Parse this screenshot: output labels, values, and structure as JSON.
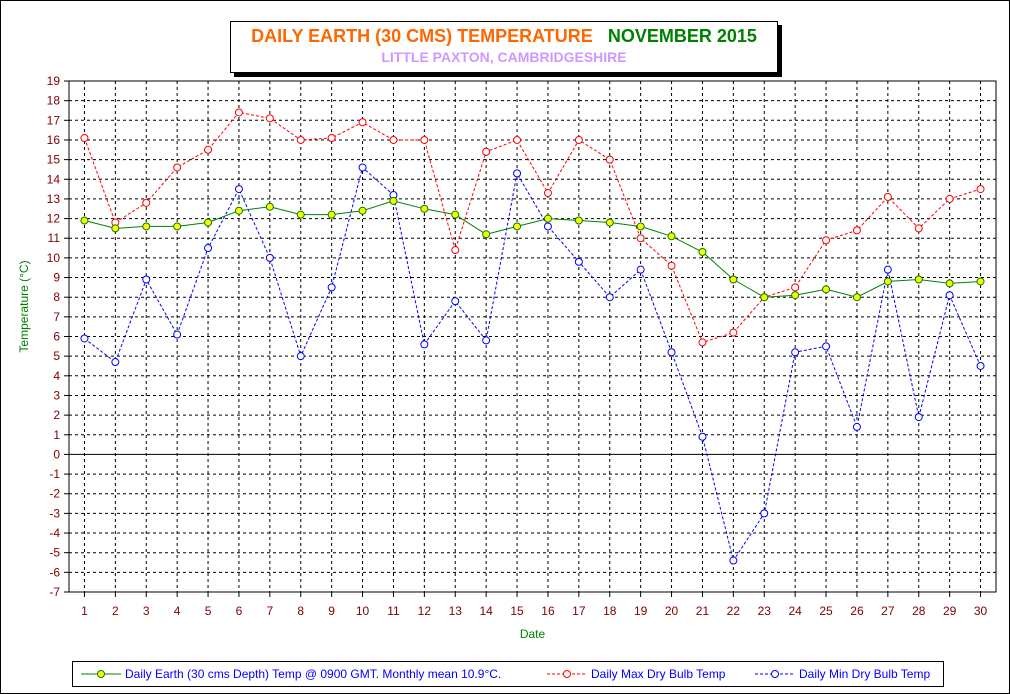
{
  "title": {
    "main": "DAILY EARTH (30 CMS) TEMPERATURE",
    "month": "NOVEMBER 2015",
    "subtitle": "LITTLE PAXTON, CAMBRIDGESHIRE"
  },
  "colors": {
    "title_main": "#ff6600",
    "title_month": "#008000",
    "subtitle": "#cc99ff",
    "axis_label": "#008000",
    "tick_label": "#800000",
    "legend_text": "#0000ff",
    "earth": "#008000",
    "earth_marker": "#ffff00",
    "max": "#ff0000",
    "min": "#0000ff",
    "grid": "#000000"
  },
  "chart_data": {
    "type": "line",
    "xlabel": "Date",
    "ylabel": "Temperature (°C)",
    "ylim": [
      -7,
      19
    ],
    "xlim": [
      1,
      30
    ],
    "grid": true,
    "legend_position": "bottom",
    "x": [
      1,
      2,
      3,
      4,
      5,
      6,
      7,
      8,
      9,
      10,
      11,
      12,
      13,
      14,
      15,
      16,
      17,
      18,
      19,
      20,
      21,
      22,
      23,
      24,
      25,
      26,
      27,
      28,
      29,
      30
    ],
    "series": [
      {
        "name": "Daily Earth (30 cms Depth) Temp @ 0900 GMT. Monthly mean 10.9°C.",
        "style": "solid",
        "color": "#008000",
        "values": [
          11.9,
          11.5,
          11.6,
          11.6,
          11.8,
          12.4,
          12.6,
          12.2,
          12.2,
          12.4,
          12.9,
          12.5,
          12.2,
          11.2,
          11.6,
          12.0,
          11.9,
          11.8,
          11.6,
          11.1,
          10.3,
          8.9,
          8.0,
          8.1,
          8.4,
          8.0,
          8.8,
          8.9,
          8.7,
          8.8
        ]
      },
      {
        "name": "Daily Max Dry Bulb Temp",
        "style": "dashed",
        "color": "#ff0000",
        "values": [
          16.1,
          11.8,
          12.8,
          14.6,
          15.5,
          17.4,
          17.1,
          16.0,
          16.1,
          16.9,
          16.0,
          16.0,
          10.4,
          15.4,
          16.0,
          13.3,
          16.0,
          15.0,
          11.0,
          9.6,
          5.7,
          6.2,
          8.0,
          8.5,
          10.9,
          11.4,
          13.1,
          11.5,
          13.0,
          13.5
        ]
      },
      {
        "name": "Daily Min Dry Bulb Temp",
        "style": "dashed",
        "color": "#0000ff",
        "values": [
          5.9,
          4.7,
          8.9,
          6.1,
          10.5,
          13.5,
          10.0,
          5.0,
          8.5,
          14.6,
          13.2,
          5.6,
          7.8,
          5.8,
          14.3,
          11.6,
          9.8,
          8.0,
          9.4,
          5.2,
          0.9,
          -5.4,
          -3.0,
          5.2,
          5.5,
          1.4,
          9.4,
          1.9,
          8.1,
          4.5
        ]
      }
    ]
  }
}
